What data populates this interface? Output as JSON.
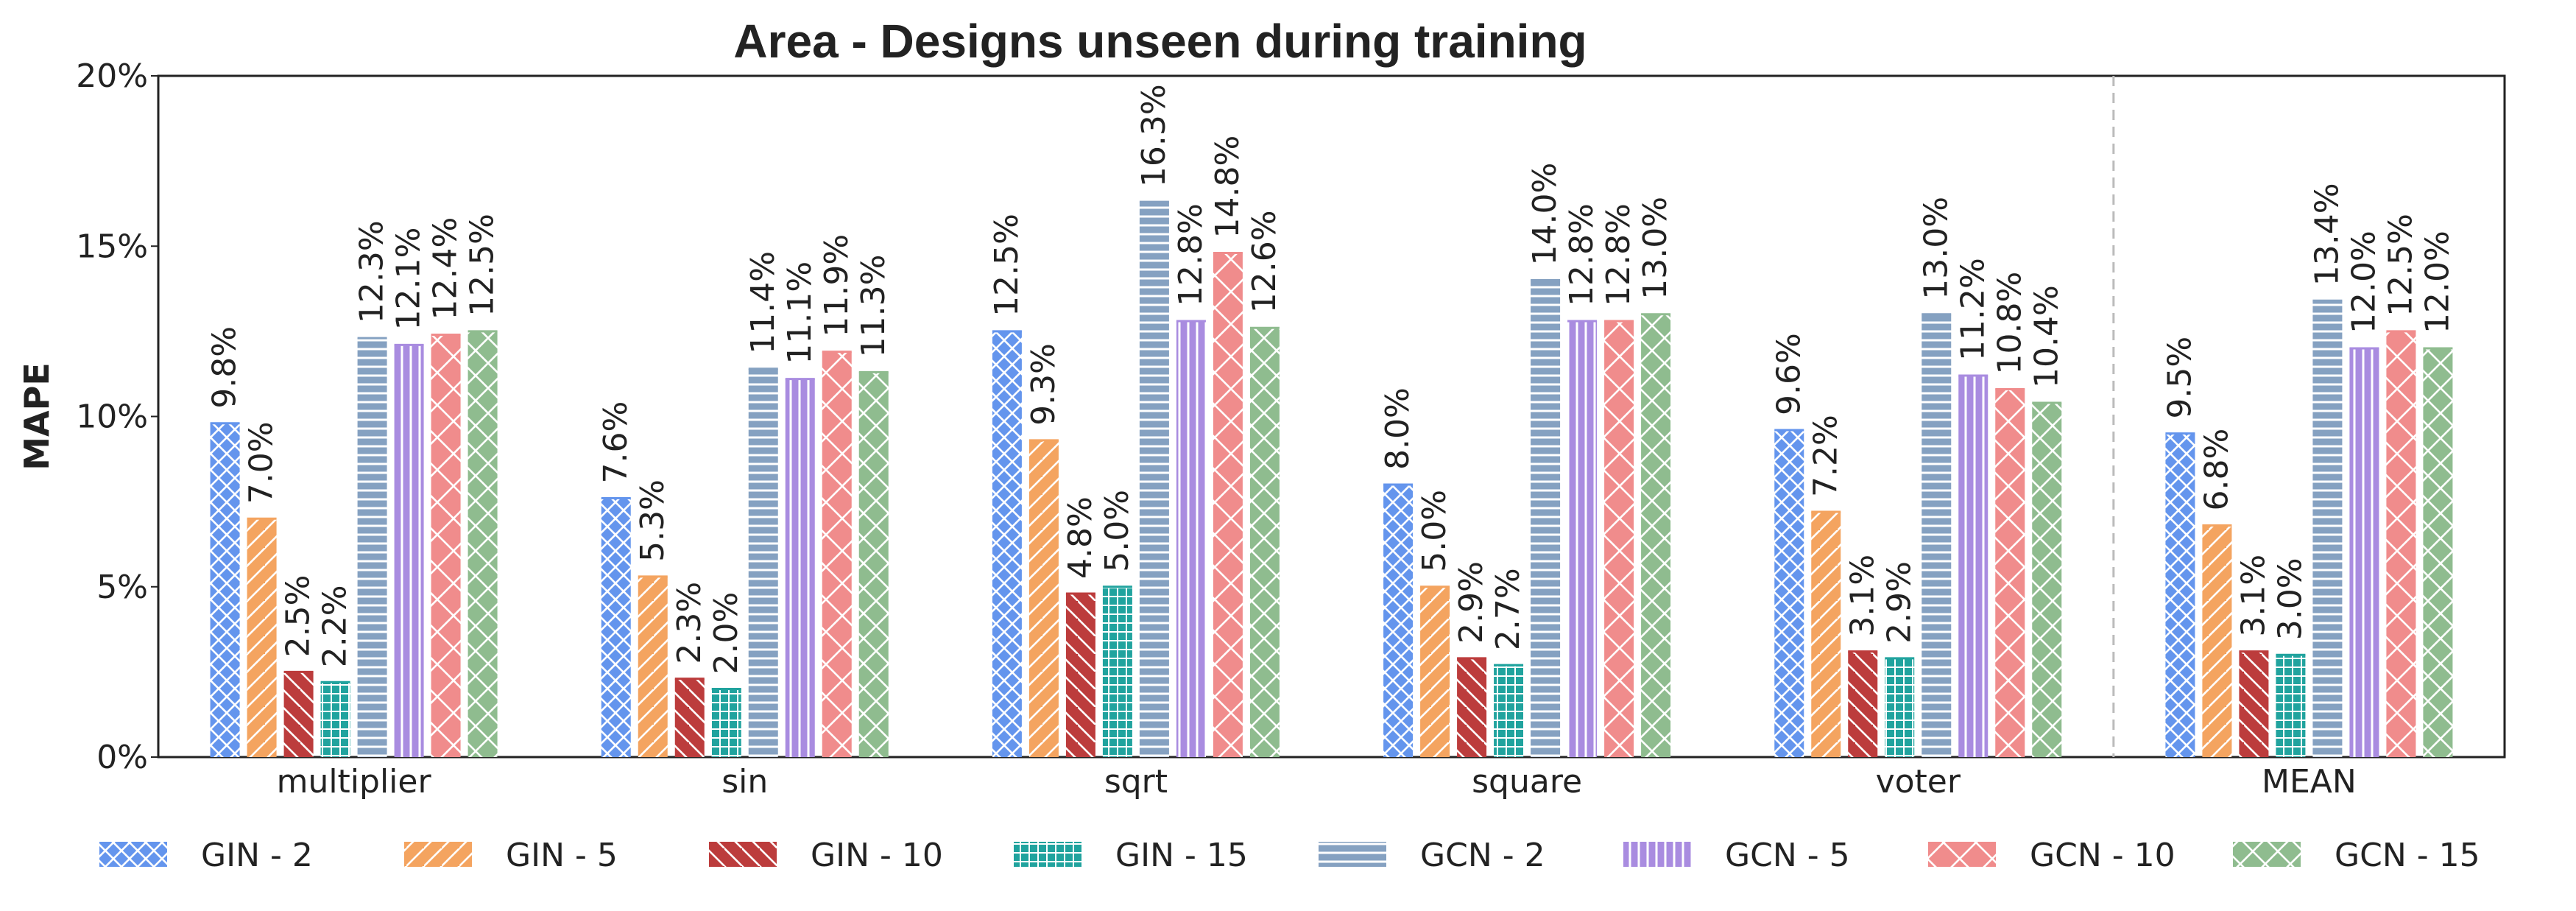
{
  "chart_data": {
    "type": "bar",
    "title": "Area - Designs unseen during training",
    "xlabel": "",
    "ylabel": "MAPE",
    "ylim": [
      0,
      20
    ],
    "yticks": [
      "0%",
      "5%",
      "10%",
      "15%",
      "20%"
    ],
    "ytick_values": [
      0,
      5,
      10,
      15,
      20
    ],
    "categories": [
      "multiplier",
      "sin",
      "sqrt",
      "square",
      "voter",
      "MEAN"
    ],
    "grid": false,
    "legend_position": "bottom",
    "separator_before": "MEAN",
    "series": [
      {
        "name": "GIN - 2",
        "color": "#6495ED",
        "pattern": "crosshatch",
        "values": [
          9.8,
          7.6,
          12.5,
          8.0,
          9.6,
          9.5
        ],
        "labels": [
          "9.8%",
          "7.6%",
          "12.5%",
          "8.0%",
          "9.6%",
          "9.5%"
        ]
      },
      {
        "name": "GIN - 5",
        "color": "#F4A460",
        "pattern": "forward-diagonal",
        "values": [
          7.0,
          5.3,
          9.3,
          5.0,
          7.2,
          6.8
        ],
        "labels": [
          "7.0%",
          "5.3%",
          "9.3%",
          "5.0%",
          "7.2%",
          "6.8%"
        ]
      },
      {
        "name": "GIN - 10",
        "color": "#BC3C3C",
        "pattern": "back-diagonal",
        "values": [
          2.5,
          2.3,
          4.8,
          2.9,
          3.1,
          3.1
        ],
        "labels": [
          "2.5%",
          "2.3%",
          "4.8%",
          "2.9%",
          "3.1%",
          "3.1%"
        ]
      },
      {
        "name": "GIN - 15",
        "color": "#20A39E",
        "pattern": "grid",
        "values": [
          2.2,
          2.0,
          5.0,
          2.7,
          2.9,
          3.0
        ],
        "labels": [
          "2.2%",
          "2.0%",
          "5.0%",
          "2.7%",
          "2.9%",
          "3.0%"
        ]
      },
      {
        "name": "GCN - 2",
        "color": "#85A1C1",
        "pattern": "horizontal",
        "values": [
          12.3,
          11.4,
          16.3,
          14.0,
          13.0,
          13.4
        ],
        "labels": [
          "12.3%",
          "11.4%",
          "16.3%",
          "14.0%",
          "13.0%",
          "13.4%"
        ]
      },
      {
        "name": "GCN - 5",
        "color": "#A98CE0",
        "pattern": "vertical",
        "values": [
          12.1,
          11.1,
          12.8,
          12.8,
          11.2,
          12.0
        ],
        "labels": [
          "12.1%",
          "11.1%",
          "12.8%",
          "12.8%",
          "11.2%",
          "12.0%"
        ]
      },
      {
        "name": "GCN - 10",
        "color": "#F08C8C",
        "pattern": "diagonal-cross",
        "values": [
          12.4,
          11.9,
          14.8,
          12.8,
          10.8,
          12.5
        ],
        "labels": [
          "12.4%",
          "11.9%",
          "14.8%",
          "12.8%",
          "10.8%",
          "12.5%"
        ]
      },
      {
        "name": "GCN - 15",
        "color": "#8FBC8F",
        "pattern": "diagonal-cross-dense",
        "values": [
          12.5,
          11.3,
          12.6,
          13.0,
          10.4,
          12.0
        ],
        "labels": [
          "12.5%",
          "11.3%",
          "12.6%",
          "13.0%",
          "10.4%",
          "12.0%"
        ]
      }
    ]
  }
}
